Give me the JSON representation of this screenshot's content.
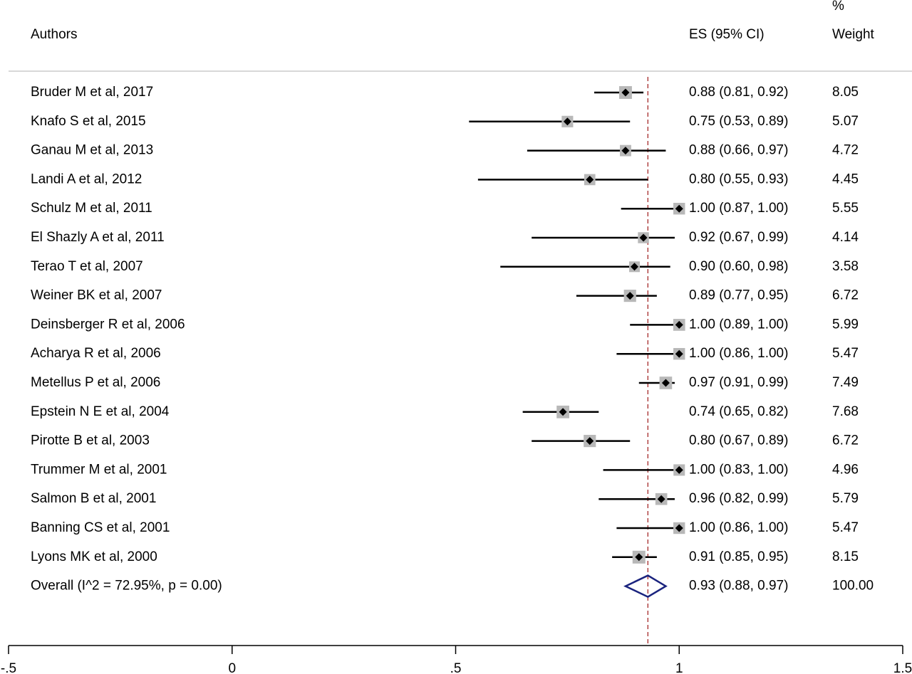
{
  "chart_data": {
    "type": "forest",
    "headers": {
      "authors": "Authors",
      "es": "ES (95% CI)",
      "weight_top": "%",
      "weight": "Weight"
    },
    "studies": [
      {
        "label": "Bruder M et al, 2017",
        "es": 0.88,
        "lo": 0.81,
        "hi": 0.92,
        "ci_text": "0.88 (0.81, 0.92)",
        "weight": "8.05"
      },
      {
        "label": "Knafo S et al, 2015",
        "es": 0.75,
        "lo": 0.53,
        "hi": 0.89,
        "ci_text": "0.75 (0.53, 0.89)",
        "weight": "5.07"
      },
      {
        "label": "Ganau M et al, 2013",
        "es": 0.88,
        "lo": 0.66,
        "hi": 0.97,
        "ci_text": "0.88 (0.66, 0.97)",
        "weight": "4.72"
      },
      {
        "label": "Landi A et al, 2012",
        "es": 0.8,
        "lo": 0.55,
        "hi": 0.93,
        "ci_text": "0.80 (0.55, 0.93)",
        "weight": "4.45"
      },
      {
        "label": "Schulz M et al, 2011",
        "es": 1.0,
        "lo": 0.87,
        "hi": 1.0,
        "ci_text": "1.00 (0.87, 1.00)",
        "weight": "5.55"
      },
      {
        "label": "El Shazly A et al, 2011",
        "es": 0.92,
        "lo": 0.67,
        "hi": 0.99,
        "ci_text": "0.92 (0.67, 0.99)",
        "weight": "4.14"
      },
      {
        "label": "Terao T et al, 2007",
        "es": 0.9,
        "lo": 0.6,
        "hi": 0.98,
        "ci_text": "0.90 (0.60, 0.98)",
        "weight": "3.58"
      },
      {
        "label": "Weiner BK et al, 2007",
        "es": 0.89,
        "lo": 0.77,
        "hi": 0.95,
        "ci_text": "0.89 (0.77, 0.95)",
        "weight": "6.72"
      },
      {
        "label": "Deinsberger R et al, 2006",
        "es": 1.0,
        "lo": 0.89,
        "hi": 1.0,
        "ci_text": "1.00 (0.89, 1.00)",
        "weight": "5.99"
      },
      {
        "label": "Acharya R et al, 2006",
        "es": 1.0,
        "lo": 0.86,
        "hi": 1.0,
        "ci_text": "1.00 (0.86, 1.00)",
        "weight": "5.47"
      },
      {
        "label": "Metellus P et al, 2006",
        "es": 0.97,
        "lo": 0.91,
        "hi": 0.99,
        "ci_text": "0.97 (0.91, 0.99)",
        "weight": "7.49"
      },
      {
        "label": "Epstein N E et al, 2004",
        "es": 0.74,
        "lo": 0.65,
        "hi": 0.82,
        "ci_text": "0.74 (0.65, 0.82)",
        "weight": "7.68"
      },
      {
        "label": "Pirotte B et al, 2003",
        "es": 0.8,
        "lo": 0.67,
        "hi": 0.89,
        "ci_text": "0.80 (0.67, 0.89)",
        "weight": "6.72"
      },
      {
        "label": "Trummer M et al, 2001",
        "es": 1.0,
        "lo": 0.83,
        "hi": 1.0,
        "ci_text": "1.00 (0.83, 1.00)",
        "weight": "4.96"
      },
      {
        "label": "Salmon B et al, 2001",
        "es": 0.96,
        "lo": 0.82,
        "hi": 0.99,
        "ci_text": "0.96 (0.82, 0.99)",
        "weight": "5.79"
      },
      {
        "label": "Banning CS et al, 2001",
        "es": 1.0,
        "lo": 0.86,
        "hi": 1.0,
        "ci_text": "1.00 (0.86, 1.00)",
        "weight": "5.47"
      },
      {
        "label": "Lyons MK et al, 2000",
        "es": 0.91,
        "lo": 0.85,
        "hi": 0.95,
        "ci_text": "0.91 (0.85, 0.95)",
        "weight": "8.15"
      }
    ],
    "overall": {
      "label": "Overall  (I^2 = 72.95%, p = 0.00)",
      "es": 0.93,
      "lo": 0.88,
      "hi": 0.97,
      "ci_text": "0.93 (0.88, 0.97)",
      "weight": "100.00"
    },
    "reference_line": 0.93,
    "xlim": [
      -0.5,
      1.5
    ],
    "xticks": [
      -0.5,
      0,
      0.5,
      1,
      1.5
    ],
    "xtick_labels": [
      "-.5",
      "0",
      ".5",
      "1",
      "1.5"
    ],
    "colors": {
      "box": "#b8b8b8",
      "point": "#000000",
      "ci_line": "#000000",
      "diamond": "#1a237e",
      "reference_line": "#a52a2a",
      "separator": "#c0c0c0"
    }
  }
}
